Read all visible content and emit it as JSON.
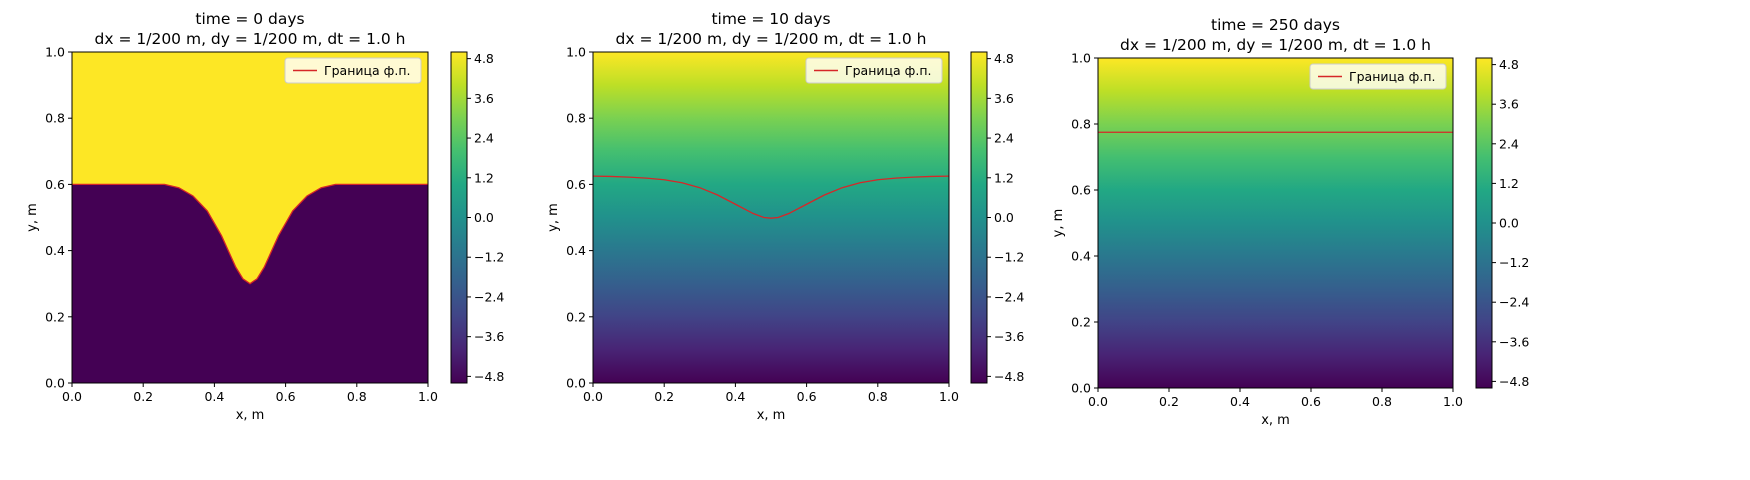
{
  "figure": {
    "colormap": "viridis",
    "boundary_color": "#d62728",
    "legend_label": "Граница ф.п."
  },
  "chart_data": [
    {
      "type": "heatmap",
      "title_line1": "time = 0 days",
      "title_line2": "dx = 1/200 m, dy = 1/200 m, dt = 1.0 h",
      "xlabel": "x, m",
      "ylabel": "y, m",
      "xlim": [
        0,
        1
      ],
      "ylim": [
        0,
        1
      ],
      "xticks": [
        "0.0",
        "0.2",
        "0.4",
        "0.6",
        "0.8",
        "1.0"
      ],
      "yticks": [
        "0.0",
        "0.2",
        "0.4",
        "0.6",
        "0.8",
        "1.0"
      ],
      "field": "step",
      "boundary": {
        "label": "Граница ф.п.",
        "x": [
          0.0,
          0.1,
          0.2,
          0.26,
          0.3,
          0.34,
          0.38,
          0.42,
          0.46,
          0.48,
          0.5,
          0.52,
          0.54,
          0.58,
          0.62,
          0.66,
          0.7,
          0.74,
          0.8,
          0.9,
          1.0
        ],
        "y": [
          0.6,
          0.6,
          0.6,
          0.6,
          0.59,
          0.565,
          0.52,
          0.445,
          0.35,
          0.315,
          0.3,
          0.315,
          0.35,
          0.445,
          0.52,
          0.565,
          0.59,
          0.6,
          0.6,
          0.6,
          0.6
        ]
      },
      "legend": "top-right",
      "colorbar": {
        "ticks": [
          4.8,
          3.6,
          2.4,
          1.2,
          0.0,
          -1.2,
          -2.4,
          -3.6,
          -4.8
        ],
        "tick_labels": [
          "4.8",
          "3.6",
          "2.4",
          "1.2",
          "0.0",
          "−1.2",
          "−2.4",
          "−3.6",
          "−4.8"
        ],
        "range": [
          -5,
          5
        ]
      }
    },
    {
      "type": "heatmap",
      "title_line1": "time = 10 days",
      "title_line2": "dx = 1/200 m, dy = 1/200 m, dt = 1.0 h",
      "xlabel": "x, m",
      "ylabel": "y, m",
      "xlim": [
        0,
        1
      ],
      "ylim": [
        0,
        1
      ],
      "xticks": [
        "0.0",
        "0.2",
        "0.4",
        "0.6",
        "0.8",
        "1.0"
      ],
      "yticks": [
        "0.0",
        "0.2",
        "0.4",
        "0.6",
        "0.8",
        "1.0"
      ],
      "field": "gradient",
      "boundary": {
        "label": "Граница ф.п.",
        "x": [
          0.0,
          0.05,
          0.1,
          0.15,
          0.2,
          0.25,
          0.3,
          0.35,
          0.4,
          0.45,
          0.48,
          0.5,
          0.52,
          0.55,
          0.6,
          0.65,
          0.7,
          0.75,
          0.8,
          0.85,
          0.9,
          0.95,
          1.0
        ],
        "y": [
          0.625,
          0.624,
          0.622,
          0.619,
          0.614,
          0.605,
          0.59,
          0.568,
          0.54,
          0.512,
          0.5,
          0.498,
          0.5,
          0.512,
          0.54,
          0.568,
          0.59,
          0.605,
          0.614,
          0.619,
          0.622,
          0.624,
          0.625
        ]
      },
      "legend": "top-right",
      "colorbar": {
        "ticks": [
          4.8,
          3.6,
          2.4,
          1.2,
          0.0,
          -1.2,
          -2.4,
          -3.6,
          -4.8
        ],
        "tick_labels": [
          "4.8",
          "3.6",
          "2.4",
          "1.2",
          "0.0",
          "−1.2",
          "−2.4",
          "−3.6",
          "−4.8"
        ],
        "range": [
          -5,
          5
        ]
      }
    },
    {
      "type": "heatmap",
      "title_line1": "time = 250 days",
      "title_line2": "dx = 1/200 m, dy = 1/200 m, dt = 1.0 h",
      "xlabel": "x, m",
      "ylabel": "y, m",
      "xlim": [
        0,
        1
      ],
      "ylim": [
        0,
        1
      ],
      "xticks": [
        "0.0",
        "0.2",
        "0.4",
        "0.6",
        "0.8",
        "1.0"
      ],
      "yticks": [
        "0.0",
        "0.2",
        "0.4",
        "0.6",
        "0.8",
        "1.0"
      ],
      "field": "gradient",
      "boundary": {
        "label": "Граница ф.п.",
        "x": [
          0.0,
          1.0
        ],
        "y": [
          0.775,
          0.775
        ]
      },
      "legend": "top-right",
      "colorbar": {
        "ticks": [
          4.8,
          3.6,
          2.4,
          1.2,
          0.0,
          -1.2,
          -2.4,
          -3.6,
          -4.8
        ],
        "tick_labels": [
          "4.8",
          "3.6",
          "2.4",
          "1.2",
          "0.0",
          "−1.2",
          "−2.4",
          "−3.6",
          "−4.8"
        ],
        "range": [
          -5,
          5
        ]
      }
    }
  ]
}
